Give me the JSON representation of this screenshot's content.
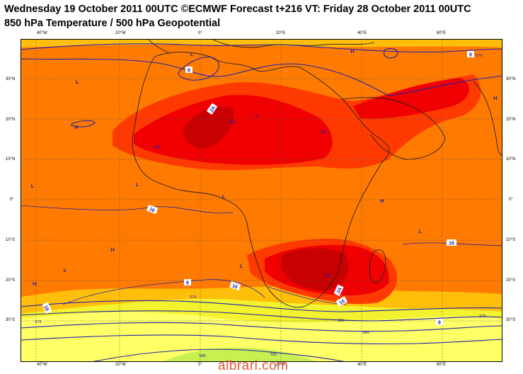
{
  "header": {
    "line1": "Wednesday 19 October 2011 00UTC ©ECMWF Forecast t+216 VT: Friday 28 October 2011 00UTC",
    "line2": "850 hPa Temperature / 500 hPa Geopotential"
  },
  "axes": {
    "lon_labels": [
      "40°W",
      "20°W",
      "0°",
      "20°E",
      "40°E",
      "60°E"
    ],
    "lat_labels": [
      "30°N",
      "20°N",
      "10°N",
      "0°",
      "10°S",
      "20°S",
      "30°S"
    ]
  },
  "temperature_labels": [
    "24",
    "24",
    "16",
    "16",
    "16",
    "16",
    "16",
    "8",
    "8",
    "8",
    "8"
  ],
  "geopotential_labels": [
    "576",
    "576",
    "576",
    "576",
    "584",
    "584",
    "592",
    "584"
  ],
  "pressure_centers": [
    "H",
    "H",
    "H",
    "H",
    "H",
    "H",
    "H",
    "H",
    "H",
    "H",
    "L",
    "L",
    "L",
    "L",
    "L",
    "L",
    "L",
    "L",
    "L"
  ],
  "colors": {
    "cold": "#f2f22e",
    "pale": "#ffff66",
    "green": "#c8f050",
    "warm1": "#ffbe0a",
    "warm2": "#ff7a00",
    "warm3": "#ff3a00",
    "hot": "#f00000",
    "hottest": "#c80000",
    "contour": "#2222aa",
    "coast": "#222222"
  },
  "watermark": "albrari.com"
}
